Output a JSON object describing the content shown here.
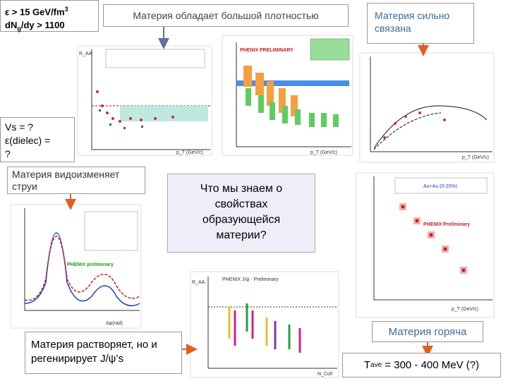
{
  "energy_box": {
    "line1": "ε > 15 GeV/fm",
    "line1_sup": "3",
    "line2": "dN",
    "line2_sub": "g",
    "line2_rest": "/dy > 1100"
  },
  "density_label": "Материя обладает большой плотностью",
  "coupling_label": "Материя сильно связана",
  "viscosity_box": {
    "line1": "Vs = ?",
    "line2": "ε(dielec) =",
    "line3": "?"
  },
  "jets_label": "Материя видоизменяет струи",
  "question": "Что мы знаем о свойствах образующейся материи?",
  "jpsi_label": "Материя растворяет, но и регенирирует J/ψ’s",
  "hot_label": "Материя горяча",
  "temperature": {
    "T": "T",
    "sub": "ave",
    "rest": " = 300 - 400 MeV (?)"
  },
  "plots": {
    "raa_pi0": {
      "ylabel": "R_AA",
      "xlabel": "p_T (GeV/c)"
    },
    "raa_centrality": {
      "banner": "PHENIX PRELIMINARY",
      "xlabel": "p_T (GeV/c)"
    },
    "flow": {
      "xlabel": "p_T (GeV/c)"
    },
    "jet_correlation": {
      "banner": "PHENIX preliminary",
      "xlabel": "Δφ(rad)"
    },
    "jpsi": {
      "title": "PHENIX J/ψ - Preliminary",
      "ylabel": "R_AA",
      "xlabel": "N_Coll"
    },
    "direct_photon": {
      "title": "Au+Au (0-20%)",
      "banner": "PHENIX Preliminary",
      "xlabel": "p_T (GeV/c)"
    }
  }
}
